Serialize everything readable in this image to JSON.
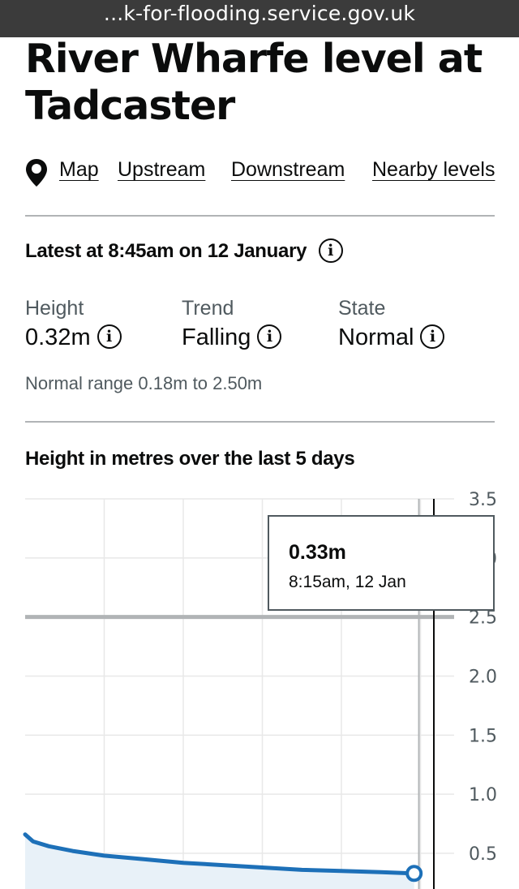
{
  "browser": {
    "url": "...k-for-flooding.service.gov.uk"
  },
  "page": {
    "title": "River Wharfe level at Tadcaster"
  },
  "nav": {
    "icon": "map-pin-icon",
    "links": [
      "Map",
      "Upstream",
      "Downstream",
      "Nearby levels"
    ]
  },
  "latest": {
    "heading": "Latest at 8:45am on 12 January"
  },
  "metrics": {
    "height": {
      "label": "Height",
      "value": "0.32m"
    },
    "trend": {
      "label": "Trend",
      "value": "Falling"
    },
    "state": {
      "label": "State",
      "value": "Normal"
    }
  },
  "normal_range": "Normal range 0.18m to 2.50m",
  "chart_heading": "Height in metres over the last 5 days",
  "tooltip": {
    "value": "0.33m",
    "time": "8:15am, 12 Jan"
  },
  "colors": {
    "line": "#1d70b8",
    "area": "#e8f1f8",
    "threshold": "#b1b4b6",
    "text": "#0b0c0c",
    "secondary": "#505a5f"
  },
  "chart_data": {
    "type": "area",
    "title": "Height in metres over the last 5 days",
    "ylabel": "",
    "xlabel": "",
    "ylim": [
      0.2,
      3.5
    ],
    "y_ticks": [
      "3.5",
      "3.0",
      "2.5",
      "2.0",
      "1.5",
      "1.0",
      "0.5"
    ],
    "y_tick_values": [
      3.5,
      3.0,
      2.5,
      2.0,
      1.5,
      1.0,
      0.5
    ],
    "threshold": 2.5,
    "grid": true,
    "x_days": [
      0,
      1,
      2,
      3,
      4,
      5
    ],
    "x": [
      0,
      0.1,
      0.3,
      0.6,
      1.0,
      1.5,
      2.0,
      2.5,
      3.0,
      3.5,
      4.0,
      4.5,
      4.92
    ],
    "values": [
      0.66,
      0.6,
      0.56,
      0.52,
      0.48,
      0.45,
      0.42,
      0.4,
      0.38,
      0.36,
      0.35,
      0.34,
      0.33
    ],
    "selected_index": 12,
    "cursor_x": 4.98
  }
}
